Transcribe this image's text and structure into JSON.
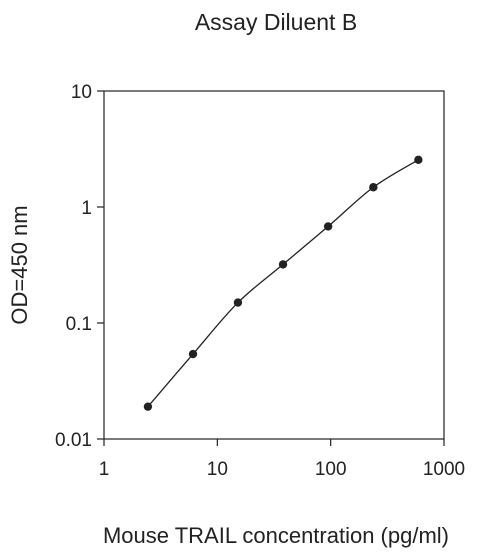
{
  "chart_data": {
    "type": "line",
    "title": "Assay Diluent B",
    "xlabel": "Mouse TRAIL concentration (pg/ml)",
    "ylabel": "OD=450 nm",
    "x_scale": "log",
    "y_scale": "log",
    "xlim": [
      1,
      1000
    ],
    "ylim": [
      0.01,
      10
    ],
    "x_ticks": [
      1,
      10,
      100,
      1000
    ],
    "x_tick_labels": [
      "1",
      "10",
      "100",
      "1000"
    ],
    "y_ticks": [
      0.01,
      0.1,
      1,
      10
    ],
    "y_tick_labels": [
      "0.01",
      "0.1",
      "1",
      "10"
    ],
    "grid": false,
    "legend": "none",
    "marker_color": "#222222",
    "series": [
      {
        "x": [
          2.44,
          6.1,
          15.2,
          38,
          95,
          238,
          594
        ],
        "y": [
          0.019,
          0.054,
          0.15,
          0.32,
          0.68,
          1.48,
          2.55
        ]
      }
    ]
  }
}
